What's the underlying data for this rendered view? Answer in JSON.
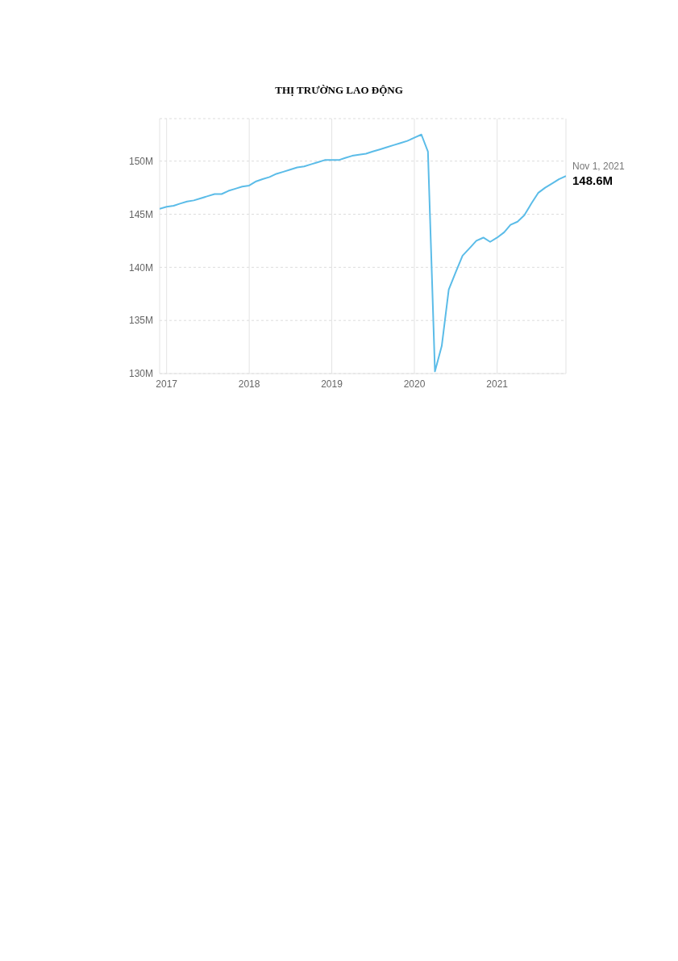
{
  "chart_data": {
    "type": "line",
    "title": "THỊ TRƯỜNG LAO ĐỘNG",
    "x": [
      "2016-12",
      "2017-01",
      "2017-02",
      "2017-03",
      "2017-04",
      "2017-05",
      "2017-06",
      "2017-07",
      "2017-08",
      "2017-09",
      "2017-10",
      "2017-11",
      "2017-12",
      "2018-01",
      "2018-02",
      "2018-03",
      "2018-04",
      "2018-05",
      "2018-06",
      "2018-07",
      "2018-08",
      "2018-09",
      "2018-10",
      "2018-11",
      "2018-12",
      "2019-01",
      "2019-02",
      "2019-03",
      "2019-04",
      "2019-05",
      "2019-06",
      "2019-07",
      "2019-08",
      "2019-09",
      "2019-10",
      "2019-11",
      "2019-12",
      "2020-01",
      "2020-02",
      "2020-03",
      "2020-04",
      "2020-05",
      "2020-06",
      "2020-07",
      "2020-08",
      "2020-09",
      "2020-10",
      "2020-11",
      "2020-12",
      "2021-01",
      "2021-02",
      "2021-03",
      "2021-04",
      "2021-05",
      "2021-06",
      "2021-07",
      "2021-08",
      "2021-09",
      "2021-10",
      "2021-11"
    ],
    "series": [
      {
        "color": "#5bbce8",
        "values": [
          145.5,
          145.7,
          145.8,
          146.0,
          146.2,
          146.3,
          146.5,
          146.7,
          146.9,
          146.9,
          147.2,
          147.4,
          147.6,
          147.7,
          148.1,
          148.3,
          148.5,
          148.8,
          149.0,
          149.2,
          149.4,
          149.5,
          149.7,
          149.9,
          150.1,
          150.1,
          150.1,
          150.3,
          150.5,
          150.6,
          150.7,
          150.9,
          151.1,
          151.3,
          151.5,
          151.7,
          151.9,
          152.2,
          152.5,
          150.9,
          130.2,
          132.6,
          137.9,
          139.5,
          141.1,
          141.8,
          142.5,
          142.8,
          142.4,
          142.8,
          143.3,
          144.0,
          144.3,
          144.9,
          146.0,
          147.0,
          147.5,
          147.9,
          148.3,
          148.6
        ]
      }
    ],
    "xlim": [
      "2016-12",
      "2021-11"
    ],
    "xticks": [
      "2017",
      "2018",
      "2019",
      "2020",
      "2021"
    ],
    "ylim": [
      130,
      154
    ],
    "yticks": [
      {
        "value": 130,
        "label": "130M"
      },
      {
        "value": 135,
        "label": "135M"
      },
      {
        "value": 140,
        "label": "140M"
      },
      {
        "value": 145,
        "label": "145M"
      },
      {
        "value": 150,
        "label": "150M"
      }
    ],
    "grid": true,
    "marker": "none",
    "annotations": [
      {
        "text": "Nov 1, 2021",
        "x": "2021-11-01",
        "y": 148.6
      },
      {
        "text": "148.6M",
        "x": "2021-11-01",
        "y": 148.6
      }
    ]
  }
}
